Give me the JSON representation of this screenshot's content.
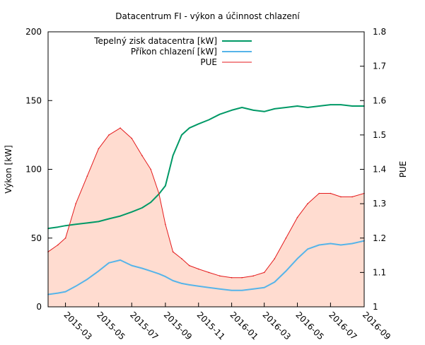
{
  "chart_data": {
    "type": "line",
    "title": "Datacentrum FI - výkon a účinnost chlazení",
    "ylabel": "Výkon [kW]",
    "y2label": "PUE",
    "ylim": [
      0,
      200
    ],
    "y2lim": [
      1.0,
      1.8
    ],
    "yticks": [
      "0",
      "50",
      "100",
      "150",
      "200"
    ],
    "y2ticks": [
      "1",
      "1.1",
      "1.2",
      "1.3",
      "1.4",
      "1.5",
      "1.6",
      "1.7",
      "1.8"
    ],
    "xlim": [
      "2015-01-28",
      "2016-09-01"
    ],
    "xticks": [
      "2015-03",
      "2015-05",
      "2015-07",
      "2015-09",
      "2015-11",
      "2016-01",
      "2016-03",
      "2016-05",
      "2016-07",
      "2016-09"
    ],
    "legend_position": "top-left",
    "series": [
      {
        "name": "Tepelný zisk datacentra [kW]",
        "axis": "left",
        "color": "#009966",
        "style": "line",
        "points": [
          [
            "2015-01-28",
            57
          ],
          [
            "2015-02-15",
            58
          ],
          [
            "2015-03-01",
            59
          ],
          [
            "2015-03-20",
            60
          ],
          [
            "2015-04-10",
            61
          ],
          [
            "2015-05-01",
            62
          ],
          [
            "2015-05-20",
            64
          ],
          [
            "2015-06-10",
            66
          ],
          [
            "2015-07-01",
            69
          ],
          [
            "2015-07-20",
            72
          ],
          [
            "2015-08-05",
            76
          ],
          [
            "2015-08-20",
            82
          ],
          [
            "2015-09-01",
            88
          ],
          [
            "2015-09-15",
            110
          ],
          [
            "2015-10-01",
            125
          ],
          [
            "2015-10-15",
            130
          ],
          [
            "2015-11-01",
            133
          ],
          [
            "2015-11-20",
            136
          ],
          [
            "2015-12-10",
            140
          ],
          [
            "2016-01-01",
            143
          ],
          [
            "2016-01-20",
            145
          ],
          [
            "2016-02-10",
            143
          ],
          [
            "2016-03-01",
            142
          ],
          [
            "2016-03-20",
            144
          ],
          [
            "2016-04-10",
            145
          ],
          [
            "2016-05-01",
            146
          ],
          [
            "2016-05-20",
            145
          ],
          [
            "2016-06-10",
            146
          ],
          [
            "2016-07-01",
            147
          ],
          [
            "2016-07-20",
            147
          ],
          [
            "2016-08-10",
            146
          ],
          [
            "2016-09-01",
            146
          ]
        ]
      },
      {
        "name": "Příkon chlazení [kW]",
        "axis": "left",
        "color": "#56b4e9",
        "style": "line",
        "points": [
          [
            "2015-01-28",
            9
          ],
          [
            "2015-02-15",
            10
          ],
          [
            "2015-03-01",
            11
          ],
          [
            "2015-03-20",
            15
          ],
          [
            "2015-04-10",
            20
          ],
          [
            "2015-05-01",
            26
          ],
          [
            "2015-05-20",
            32
          ],
          [
            "2015-06-10",
            34
          ],
          [
            "2015-07-01",
            30
          ],
          [
            "2015-07-20",
            28
          ],
          [
            "2015-08-05",
            26
          ],
          [
            "2015-08-20",
            24
          ],
          [
            "2015-09-01",
            22
          ],
          [
            "2015-09-15",
            19
          ],
          [
            "2015-10-01",
            17
          ],
          [
            "2015-10-15",
            16
          ],
          [
            "2015-11-01",
            15
          ],
          [
            "2015-11-20",
            14
          ],
          [
            "2015-12-10",
            13
          ],
          [
            "2016-01-01",
            12
          ],
          [
            "2016-01-20",
            12
          ],
          [
            "2016-02-10",
            13
          ],
          [
            "2016-03-01",
            14
          ],
          [
            "2016-03-20",
            18
          ],
          [
            "2016-04-10",
            26
          ],
          [
            "2016-05-01",
            35
          ],
          [
            "2016-05-20",
            42
          ],
          [
            "2016-06-10",
            45
          ],
          [
            "2016-07-01",
            46
          ],
          [
            "2016-07-20",
            45
          ],
          [
            "2016-08-10",
            46
          ],
          [
            "2016-09-01",
            48
          ]
        ]
      },
      {
        "name": "PUE",
        "axis": "right",
        "color": "#e41a1c",
        "style": "filled-line",
        "fill": "#ffdcd0",
        "points": [
          [
            "2015-01-28",
            1.16
          ],
          [
            "2015-02-15",
            1.18
          ],
          [
            "2015-03-01",
            1.2
          ],
          [
            "2015-03-20",
            1.3
          ],
          [
            "2015-04-10",
            1.38
          ],
          [
            "2015-05-01",
            1.46
          ],
          [
            "2015-05-20",
            1.5
          ],
          [
            "2015-06-10",
            1.52
          ],
          [
            "2015-07-01",
            1.49
          ],
          [
            "2015-07-20",
            1.44
          ],
          [
            "2015-08-05",
            1.4
          ],
          [
            "2015-08-20",
            1.33
          ],
          [
            "2015-09-01",
            1.24
          ],
          [
            "2015-09-15",
            1.16
          ],
          [
            "2015-10-01",
            1.14
          ],
          [
            "2015-10-15",
            1.12
          ],
          [
            "2015-11-01",
            1.11
          ],
          [
            "2015-11-20",
            1.1
          ],
          [
            "2015-12-10",
            1.09
          ],
          [
            "2016-01-01",
            1.085
          ],
          [
            "2016-01-20",
            1.085
          ],
          [
            "2016-02-10",
            1.09
          ],
          [
            "2016-03-01",
            1.1
          ],
          [
            "2016-03-20",
            1.14
          ],
          [
            "2016-04-10",
            1.2
          ],
          [
            "2016-05-01",
            1.26
          ],
          [
            "2016-05-20",
            1.3
          ],
          [
            "2016-06-10",
            1.33
          ],
          [
            "2016-07-01",
            1.33
          ],
          [
            "2016-07-20",
            1.32
          ],
          [
            "2016-08-10",
            1.32
          ],
          [
            "2016-09-01",
            1.33
          ]
        ]
      }
    ]
  }
}
